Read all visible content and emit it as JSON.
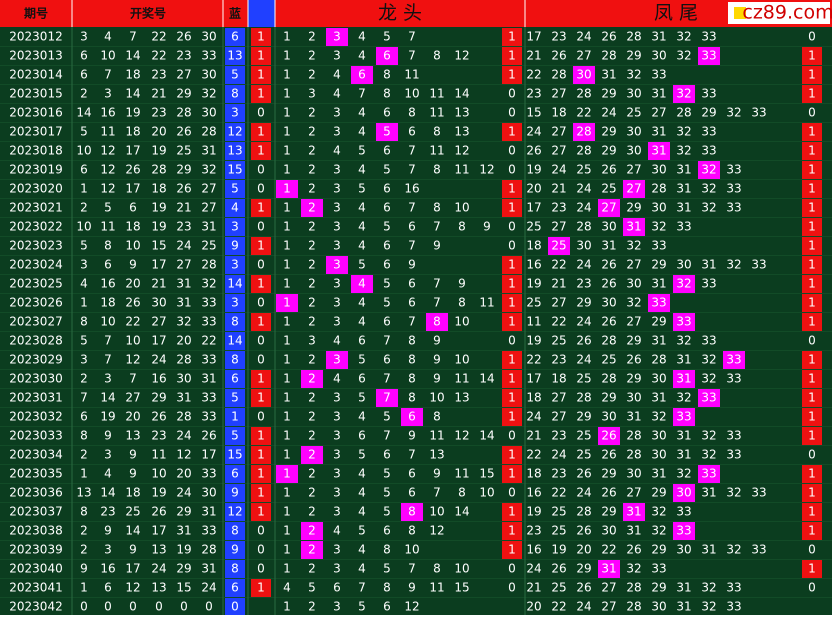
{
  "header": {
    "period": "期号",
    "draw": "开奖号",
    "blue": "蓝",
    "dragon": "龙 头",
    "tail": "凤 尾",
    "logo": "cz89.com"
  },
  "rows": [
    {
      "period": 2023012,
      "reds": [
        3,
        4,
        7,
        22,
        26,
        30
      ],
      "blue": 6,
      "a": 1,
      "dragon": [
        1,
        2,
        3,
        4,
        5,
        7
      ],
      "dhit": 2,
      "dflag": 1,
      "tail": [
        17,
        23,
        24,
        26,
        28,
        31,
        32,
        33
      ],
      "thit": null,
      "tflag": 0
    },
    {
      "period": 2023013,
      "reds": [
        6,
        10,
        14,
        22,
        23,
        33
      ],
      "blue": 13,
      "a": 1,
      "dragon": [
        1,
        2,
        3,
        4,
        6,
        7,
        8,
        12
      ],
      "dhit": 4,
      "dflag": 1,
      "tail": [
        21,
        26,
        27,
        28,
        29,
        30,
        32,
        33
      ],
      "thit": 7,
      "tflag": 1
    },
    {
      "period": 2023014,
      "reds": [
        6,
        7,
        18,
        23,
        27,
        30
      ],
      "blue": 5,
      "a": 1,
      "dragon": [
        1,
        2,
        4,
        6,
        8,
        11
      ],
      "dhit": 3,
      "dflag": 1,
      "tail": [
        22,
        28,
        30,
        31,
        32,
        33
      ],
      "thit": 2,
      "tflag": 1
    },
    {
      "period": 2023015,
      "reds": [
        2,
        3,
        14,
        21,
        29,
        32
      ],
      "blue": 8,
      "a": 1,
      "dragon": [
        1,
        3,
        4,
        7,
        8,
        10,
        11,
        14
      ],
      "dhit": null,
      "dflag": 0,
      "tail": [
        23,
        27,
        28,
        29,
        30,
        31,
        32,
        33
      ],
      "thit": 6,
      "tflag": 1
    },
    {
      "period": 2023016,
      "reds": [
        14,
        16,
        19,
        23,
        28,
        30
      ],
      "blue": 3,
      "a": 0,
      "dragon": [
        1,
        2,
        3,
        4,
        6,
        8,
        11,
        13
      ],
      "dhit": null,
      "dflag": 0,
      "tail": [
        15,
        18,
        22,
        24,
        25,
        27,
        28,
        29,
        32,
        33
      ],
      "thit": null,
      "tflag": 0
    },
    {
      "period": 2023017,
      "reds": [
        5,
        11,
        18,
        20,
        26,
        28
      ],
      "blue": 12,
      "a": 1,
      "dragon": [
        1,
        2,
        3,
        4,
        5,
        6,
        8,
        13
      ],
      "dhit": 4,
      "dflag": 1,
      "tail": [
        24,
        27,
        28,
        29,
        30,
        31,
        32,
        33
      ],
      "thit": 2,
      "tflag": 1
    },
    {
      "period": 2023018,
      "reds": [
        10,
        12,
        17,
        19,
        25,
        31
      ],
      "blue": 13,
      "a": 1,
      "dragon": [
        1,
        2,
        4,
        5,
        6,
        7,
        11,
        12
      ],
      "dhit": null,
      "dflag": 0,
      "tail": [
        26,
        27,
        28,
        29,
        30,
        31,
        32,
        33
      ],
      "thit": 5,
      "tflag": 1
    },
    {
      "period": 2023019,
      "reds": [
        6,
        12,
        26,
        28,
        29,
        32
      ],
      "blue": 15,
      "a": 0,
      "dragon": [
        1,
        2,
        3,
        4,
        5,
        7,
        8,
        11,
        12
      ],
      "dhit": null,
      "dflag": 0,
      "tail": [
        19,
        24,
        25,
        26,
        27,
        30,
        31,
        32,
        33
      ],
      "thit": 7,
      "tflag": 1
    },
    {
      "period": 2023020,
      "reds": [
        1,
        12,
        17,
        18,
        26,
        27
      ],
      "blue": 5,
      "a": 0,
      "dragon": [
        1,
        2,
        3,
        5,
        6,
        16
      ],
      "dhit": 0,
      "dflag": 1,
      "tail": [
        20,
        21,
        24,
        25,
        27,
        28,
        31,
        32,
        33
      ],
      "thit": 4,
      "tflag": 1
    },
    {
      "period": 2023021,
      "reds": [
        2,
        5,
        6,
        19,
        21,
        27
      ],
      "blue": 4,
      "a": 1,
      "dragon": [
        1,
        2,
        3,
        4,
        6,
        7,
        8,
        10
      ],
      "dhit": 1,
      "dflag": 1,
      "tail": [
        17,
        23,
        24,
        27,
        29,
        30,
        31,
        32,
        33
      ],
      "thit": 3,
      "tflag": 1
    },
    {
      "period": 2023022,
      "reds": [
        10,
        11,
        18,
        19,
        23,
        31
      ],
      "blue": 3,
      "a": 0,
      "dragon": [
        1,
        2,
        3,
        4,
        5,
        6,
        7,
        8,
        9
      ],
      "dhit": null,
      "dflag": 0,
      "tail": [
        25,
        27,
        28,
        30,
        31,
        32,
        33
      ],
      "thit": 4,
      "tflag": 1
    },
    {
      "period": 2023023,
      "reds": [
        5,
        8,
        10,
        15,
        24,
        25
      ],
      "blue": 9,
      "a": 1,
      "dragon": [
        1,
        2,
        3,
        4,
        6,
        7,
        9
      ],
      "dhit": null,
      "dflag": 0,
      "tail": [
        18,
        25,
        30,
        31,
        32,
        33
      ],
      "thit": 1,
      "tflag": 1
    },
    {
      "period": 2023024,
      "reds": [
        3,
        6,
        9,
        17,
        27,
        28
      ],
      "blue": 3,
      "a": 0,
      "dragon": [
        1,
        2,
        3,
        5,
        6,
        9
      ],
      "dhit": 2,
      "dflag": 1,
      "tail": [
        16,
        22,
        24,
        26,
        27,
        29,
        30,
        31,
        32,
        33
      ],
      "thit": null,
      "tflag": 1
    },
    {
      "period": 2023025,
      "reds": [
        4,
        16,
        20,
        21,
        31,
        32
      ],
      "blue": 14,
      "a": 1,
      "dragon": [
        1,
        2,
        3,
        4,
        5,
        6,
        7,
        9
      ],
      "dhit": 3,
      "dflag": 1,
      "tail": [
        19,
        21,
        23,
        26,
        30,
        31,
        32,
        33
      ],
      "thit": 6,
      "tflag": 1
    },
    {
      "period": 2023026,
      "reds": [
        1,
        18,
        26,
        30,
        31,
        33
      ],
      "blue": 3,
      "a": 0,
      "dragon": [
        1,
        2,
        3,
        4,
        5,
        6,
        7,
        8,
        11,
        12
      ],
      "dhit": 0,
      "dflag": 1,
      "tail": [
        25,
        27,
        29,
        30,
        32,
        33
      ],
      "thit": 5,
      "tflag": 1
    },
    {
      "period": 2023027,
      "reds": [
        8,
        10,
        22,
        27,
        32,
        33
      ],
      "blue": 8,
      "a": 1,
      "dragon": [
        1,
        2,
        3,
        4,
        6,
        7,
        8,
        10
      ],
      "dhit": 6,
      "dflag": 1,
      "tail": [
        11,
        22,
        24,
        26,
        27,
        29,
        33
      ],
      "thit": 6,
      "tflag": 1
    },
    {
      "period": 2023028,
      "reds": [
        5,
        7,
        10,
        17,
        20,
        22
      ],
      "blue": 14,
      "a": 0,
      "dragon": [
        1,
        3,
        4,
        6,
        7,
        8,
        9
      ],
      "dhit": null,
      "dflag": 0,
      "tail": [
        19,
        25,
        26,
        28,
        29,
        31,
        32,
        33
      ],
      "thit": null,
      "tflag": 0
    },
    {
      "period": 2023029,
      "reds": [
        3,
        7,
        12,
        24,
        28,
        33
      ],
      "blue": 8,
      "a": 0,
      "dragon": [
        1,
        2,
        3,
        5,
        6,
        8,
        9,
        10
      ],
      "dhit": 2,
      "dflag": 1,
      "tail": [
        22,
        23,
        24,
        25,
        26,
        28,
        31,
        32,
        33
      ],
      "thit": 8,
      "tflag": 1
    },
    {
      "period": 2023030,
      "reds": [
        2,
        3,
        7,
        16,
        30,
        31
      ],
      "blue": 6,
      "a": 1,
      "dragon": [
        1,
        2,
        4,
        6,
        7,
        8,
        9,
        11,
        14
      ],
      "dhit": 1,
      "dflag": 1,
      "tail": [
        17,
        18,
        25,
        28,
        29,
        30,
        31,
        32,
        33
      ],
      "thit": 6,
      "tflag": 1
    },
    {
      "period": 2023031,
      "reds": [
        7,
        14,
        27,
        29,
        31,
        33
      ],
      "blue": 5,
      "a": 1,
      "dragon": [
        1,
        2,
        3,
        5,
        7,
        8,
        10,
        13
      ],
      "dhit": 4,
      "dflag": 1,
      "tail": [
        18,
        27,
        28,
        29,
        30,
        31,
        32,
        33
      ],
      "thit": 7,
      "tflag": 1
    },
    {
      "period": 2023032,
      "reds": [
        6,
        19,
        20,
        26,
        28,
        33
      ],
      "blue": 1,
      "a": 0,
      "dragon": [
        1,
        2,
        3,
        4,
        5,
        6,
        8
      ],
      "dhit": 5,
      "dflag": 1,
      "tail": [
        24,
        27,
        29,
        30,
        31,
        32,
        33
      ],
      "thit": 6,
      "tflag": 1
    },
    {
      "period": 2023033,
      "reds": [
        8,
        9,
        13,
        23,
        24,
        26
      ],
      "blue": 5,
      "a": 1,
      "dragon": [
        1,
        2,
        3,
        6,
        7,
        9,
        11,
        12,
        14
      ],
      "dhit": null,
      "dflag": 0,
      "tail": [
        21,
        23,
        25,
        26,
        28,
        30,
        31,
        32,
        33
      ],
      "thit": 3,
      "tflag": 1
    },
    {
      "period": 2023034,
      "reds": [
        2,
        3,
        9,
        11,
        12,
        17
      ],
      "blue": 15,
      "a": 1,
      "dragon": [
        1,
        2,
        3,
        5,
        6,
        7,
        13
      ],
      "dhit": 1,
      "dflag": 1,
      "tail": [
        22,
        24,
        25,
        26,
        28,
        30,
        31,
        32,
        33
      ],
      "thit": null,
      "tflag": 0
    },
    {
      "period": 2023035,
      "reds": [
        1,
        4,
        9,
        10,
        20,
        33
      ],
      "blue": 6,
      "a": 1,
      "dragon": [
        1,
        2,
        3,
        4,
        5,
        6,
        9,
        11,
        15
      ],
      "dhit": 0,
      "dflag": 1,
      "tail": [
        18,
        23,
        26,
        29,
        30,
        31,
        32,
        33
      ],
      "thit": 7,
      "tflag": 1
    },
    {
      "period": 2023036,
      "reds": [
        13,
        14,
        18,
        19,
        24,
        30
      ],
      "blue": 9,
      "a": 1,
      "dragon": [
        1,
        2,
        3,
        4,
        5,
        6,
        7,
        8,
        10
      ],
      "dhit": null,
      "dflag": 0,
      "tail": [
        16,
        22,
        24,
        26,
        27,
        29,
        30,
        31,
        32,
        33
      ],
      "thit": 6,
      "tflag": 1
    },
    {
      "period": 2023037,
      "reds": [
        8,
        23,
        25,
        26,
        29,
        31
      ],
      "blue": 12,
      "a": 1,
      "dragon": [
        1,
        2,
        3,
        4,
        5,
        8,
        10,
        14
      ],
      "dhit": 5,
      "dflag": 1,
      "tail": [
        19,
        25,
        28,
        29,
        31,
        32,
        33
      ],
      "thit": 4,
      "tflag": 1
    },
    {
      "period": 2023038,
      "reds": [
        2,
        9,
        14,
        17,
        31,
        33
      ],
      "blue": 8,
      "a": 0,
      "dragon": [
        1,
        2,
        4,
        5,
        6,
        8,
        12
      ],
      "dhit": 1,
      "dflag": 1,
      "tail": [
        23,
        25,
        26,
        30,
        31,
        32,
        33
      ],
      "thit": 6,
      "tflag": 1
    },
    {
      "period": 2023039,
      "reds": [
        2,
        3,
        9,
        13,
        19,
        28
      ],
      "blue": 9,
      "a": 0,
      "dragon": [
        1,
        2,
        3,
        4,
        8,
        10
      ],
      "dhit": 1,
      "dflag": 1,
      "tail": [
        16,
        19,
        20,
        22,
        26,
        29,
        30,
        31,
        32,
        33
      ],
      "thit": null,
      "tflag": 0
    },
    {
      "period": 2023040,
      "reds": [
        9,
        16,
        17,
        24,
        29,
        31
      ],
      "blue": 8,
      "a": 0,
      "dragon": [
        1,
        2,
        3,
        4,
        5,
        7,
        8,
        10
      ],
      "dhit": null,
      "dflag": 0,
      "tail": [
        24,
        26,
        29,
        31,
        32,
        33
      ],
      "thit": 3,
      "tflag": 1
    },
    {
      "period": 2023041,
      "reds": [
        1,
        6,
        12,
        13,
        15,
        24
      ],
      "blue": 6,
      "a": 1,
      "dragon": [
        4,
        5,
        6,
        7,
        8,
        9,
        11,
        15
      ],
      "dhit": null,
      "dflag": 0,
      "tail": [
        21,
        25,
        26,
        27,
        28,
        29,
        31,
        32,
        33
      ],
      "thit": null,
      "tflag": 0
    },
    {
      "period": 2023042,
      "reds": [
        0,
        0,
        0,
        0,
        0,
        0
      ],
      "blue": 0,
      "a": null,
      "dragon": [
        1,
        2,
        3,
        5,
        6,
        12
      ],
      "dhit": null,
      "dflag": null,
      "tail": [
        20,
        22,
        24,
        27,
        28,
        30,
        31,
        32,
        33
      ],
      "thit": null,
      "tflag": null
    }
  ]
}
